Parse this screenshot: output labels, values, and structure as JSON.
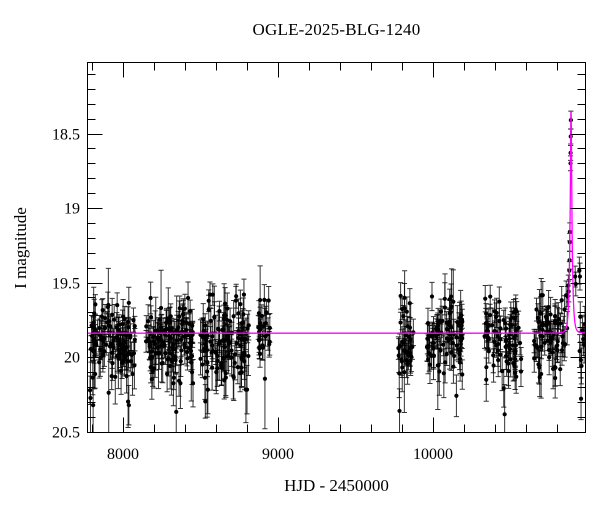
{
  "chart_data": {
    "type": "scatter",
    "title": "OGLE-2025-BLG-1240",
    "xlabel": "HJD - 2450000",
    "ylabel": "I magnitude",
    "xlim": [
      7767,
      10990
    ],
    "ylim_mag": [
      20.51,
      18.02
    ],
    "x_ticks": [
      {
        "value": 8000,
        "label": "8000"
      },
      {
        "value": 9000,
        "label": "9000"
      },
      {
        "value": 10000,
        "label": "10000"
      }
    ],
    "y_ticks": [
      {
        "value": 18.5,
        "label": "18.5"
      },
      {
        "value": 19,
        "label": "19"
      },
      {
        "value": 19.5,
        "label": "19.5"
      },
      {
        "value": 20,
        "label": "20"
      },
      {
        "value": 20.5,
        "label": "20.5"
      }
    ],
    "x_minor_step": 200,
    "y_minor_step": 0.1,
    "grid": false,
    "legend": null,
    "colors": {
      "background": "#ffffff",
      "frame": "#000000",
      "points": "#000000",
      "error_bars": "#000000",
      "model_curve": "#ff00ff"
    },
    "baseline_mag": 19.84,
    "model": {
      "kind": "paczynski-microlensing",
      "I0": 19.84,
      "t0": 10893.5,
      "tE": 13,
      "u0": 0.26,
      "peak_mag": 18.35
    },
    "seasons": [
      {
        "t_start": 7785,
        "t_end": 8080,
        "n": 115,
        "mean_mag": 19.88,
        "sigma": 0.115
      },
      {
        "t_start": 8148,
        "t_end": 8452,
        "n": 125,
        "mean_mag": 19.89,
        "sigma": 0.13
      },
      {
        "t_start": 8500,
        "t_end": 8812,
        "n": 115,
        "mean_mag": 19.9,
        "sigma": 0.145
      },
      {
        "t_start": 8872,
        "t_end": 8948,
        "n": 26,
        "mean_mag": 19.86,
        "sigma": 0.13
      },
      {
        "t_start": 9778,
        "t_end": 9875,
        "n": 38,
        "mean_mag": 19.92,
        "sigma": 0.15
      },
      {
        "t_start": 9962,
        "t_end": 10192,
        "n": 82,
        "mean_mag": 19.88,
        "sigma": 0.13
      },
      {
        "t_start": 10332,
        "t_end": 10580,
        "n": 82,
        "mean_mag": 19.87,
        "sigma": 0.13
      },
      {
        "t_start": 10650,
        "t_end": 10872,
        "n": 72,
        "mean_mag": 19.86,
        "sigma": 0.125
      }
    ],
    "highlight_points": [
      [
        10876.0,
        19.52,
        0.07
      ],
      [
        10878.0,
        19.56,
        0.07
      ],
      [
        10882.6,
        19.42,
        0.06
      ],
      [
        10883.7,
        19.35,
        0.06
      ],
      [
        10885.1,
        19.23,
        0.06
      ],
      [
        10885.8,
        19.16,
        0.06
      ],
      [
        10890.1,
        18.7,
        0.05
      ],
      [
        10890.6,
        18.63,
        0.05
      ],
      [
        10891.3,
        18.52,
        0.05
      ],
      [
        10892.3,
        18.41,
        0.06
      ],
      [
        10920.0,
        19.46,
        0.07
      ],
      [
        10924.0,
        19.51,
        0.08
      ],
      [
        10947.0,
        19.42,
        0.09
      ],
      [
        10951.0,
        19.46,
        0.09
      ],
      [
        10953.0,
        19.73,
        0.1
      ],
      [
        10949.0,
        19.96,
        0.11
      ],
      [
        10957.0,
        20.02,
        0.12
      ],
      [
        10958.0,
        20.28,
        0.14
      ],
      [
        10961.0,
        20.06,
        0.12
      ],
      [
        10967.0,
        19.82,
        0.1
      ],
      [
        10972.0,
        19.88,
        0.11
      ],
      [
        10978.0,
        19.92,
        0.12
      ],
      [
        10983.0,
        19.78,
        0.12
      ],
      [
        10986.0,
        19.85,
        0.12
      ]
    ]
  }
}
